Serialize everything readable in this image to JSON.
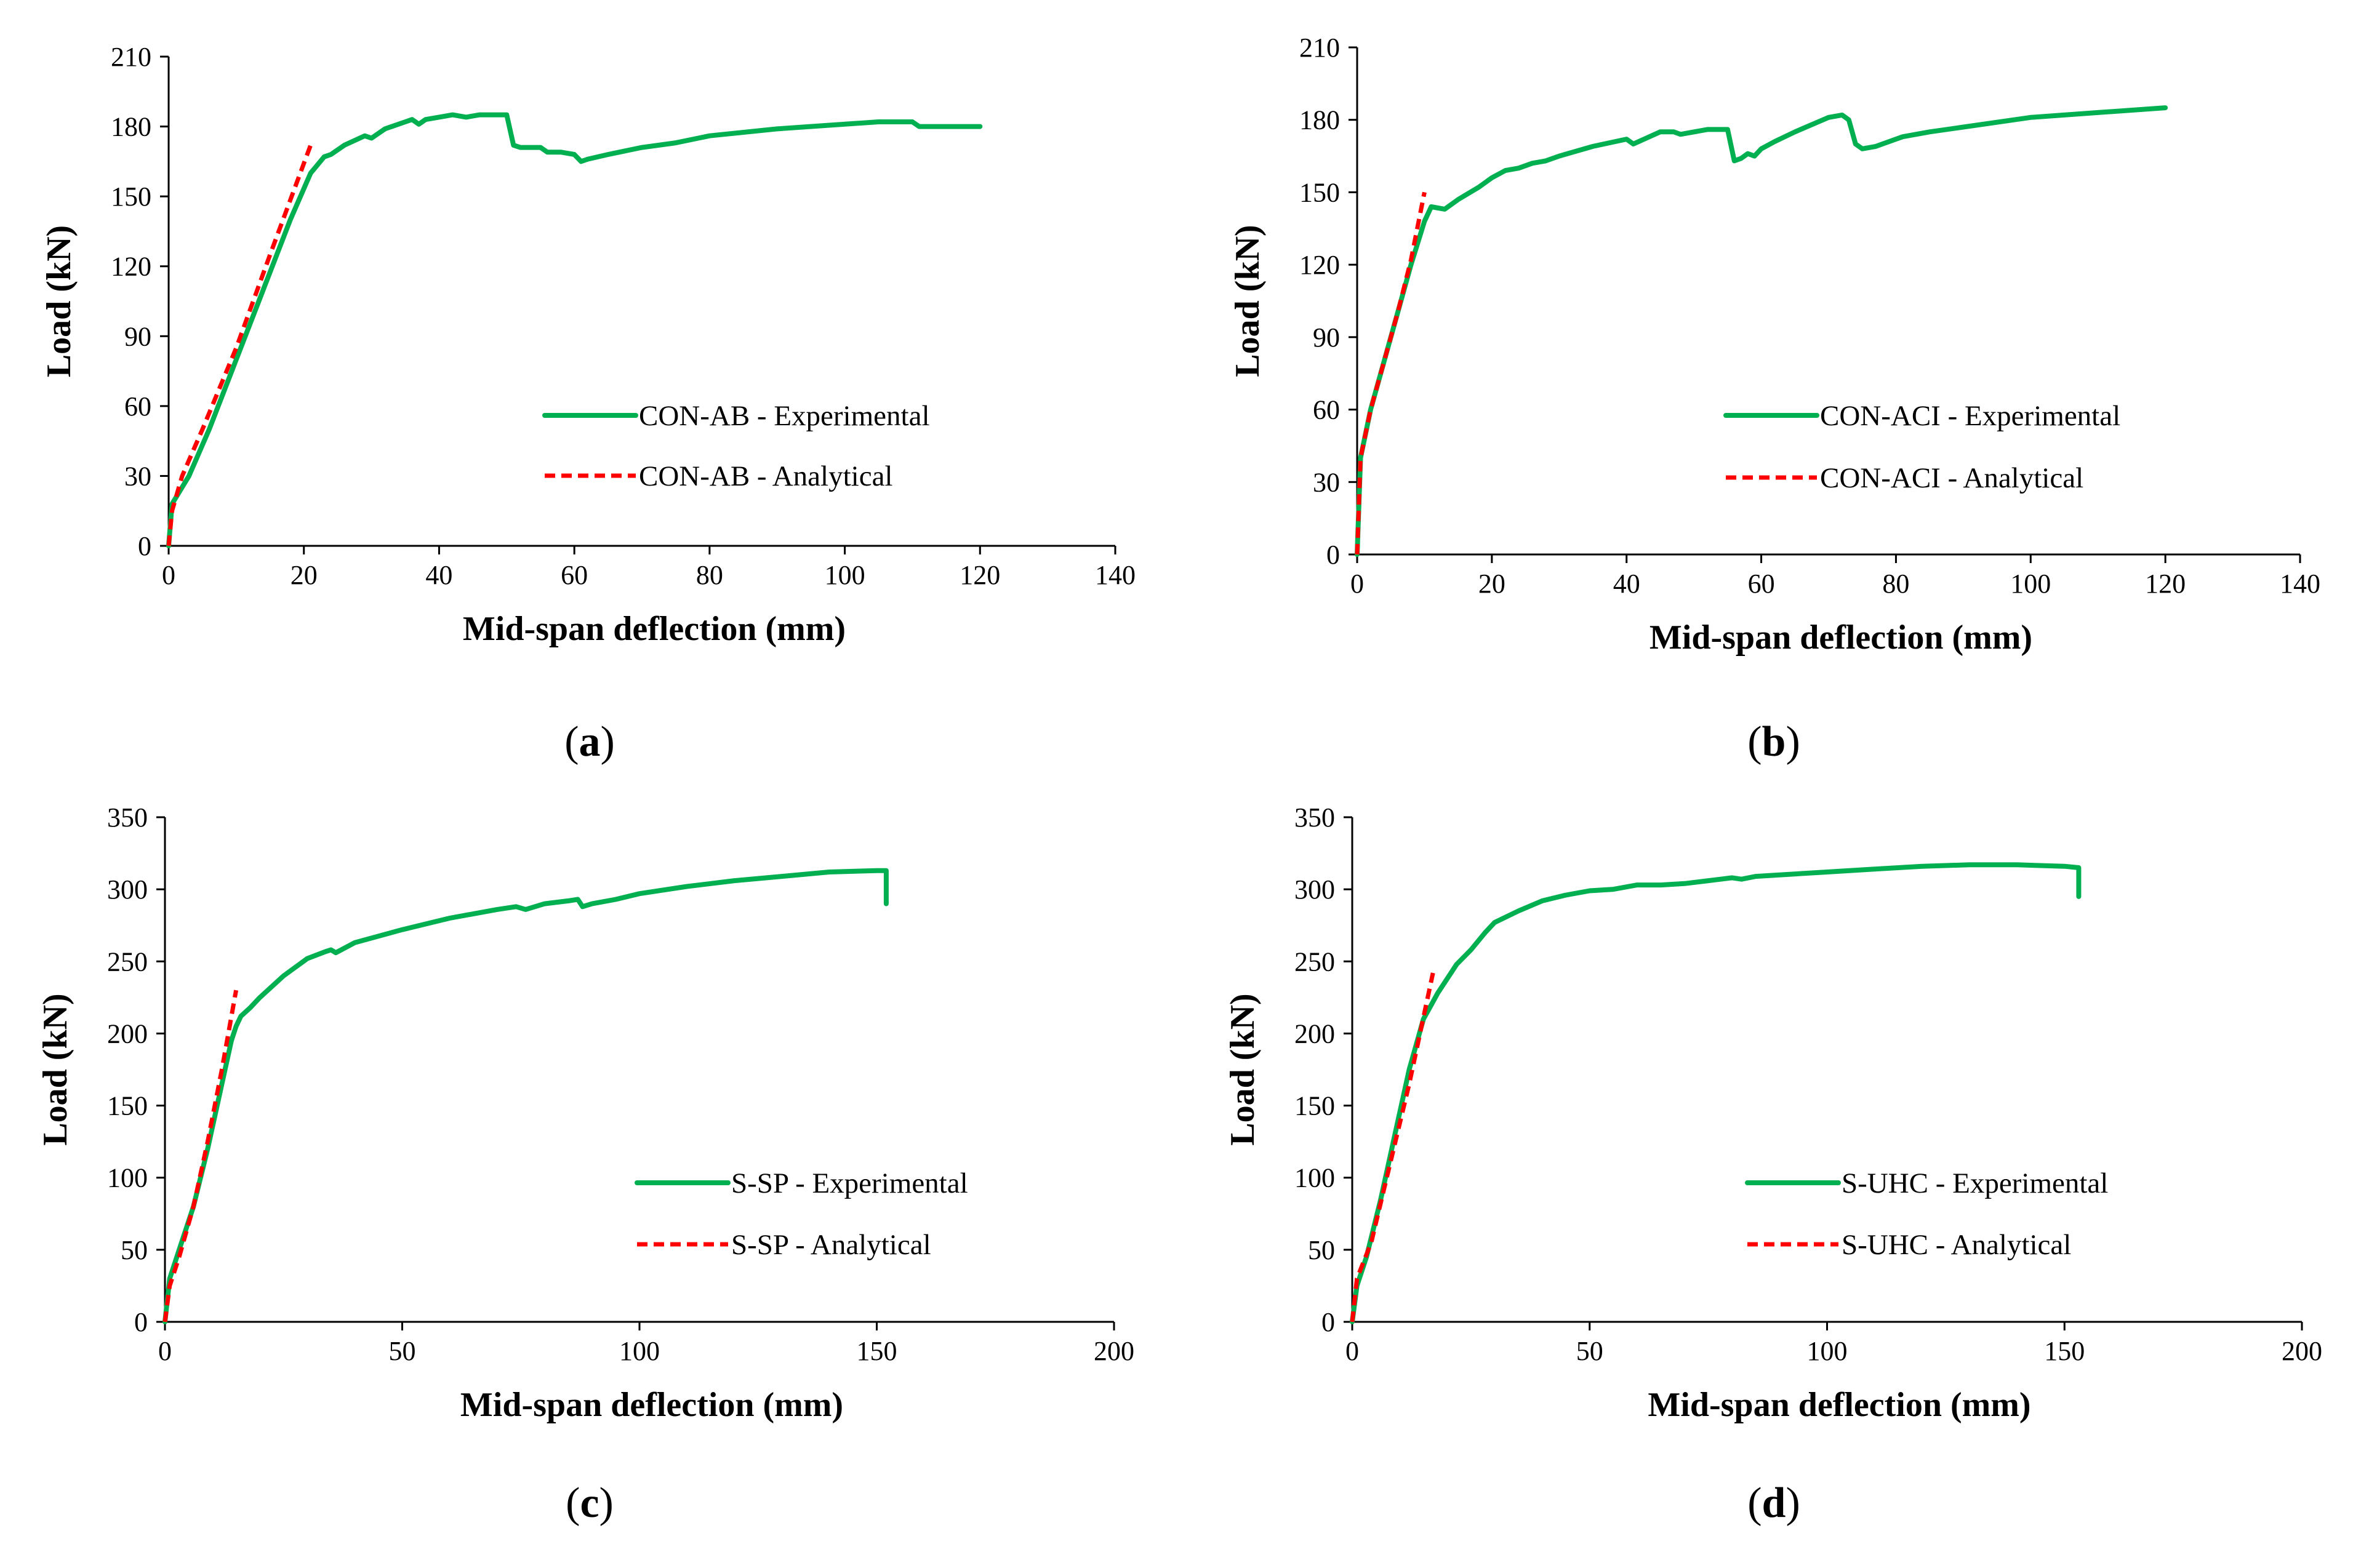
{
  "colors": {
    "experimental": "#00b050",
    "analytical": "#ff0000",
    "axis": "#000000"
  },
  "chart_data": [
    {
      "type": "line",
      "panel": "a",
      "caption_letter": "a",
      "xlabel": "Mid-span deflection (mm)",
      "ylabel": "Load (kN)",
      "xlim": [
        0,
        140
      ],
      "ylim": [
        0,
        210
      ],
      "xticks": [
        "0",
        "20",
        "40",
        "60",
        "80",
        "100",
        "120",
        "140"
      ],
      "yticks": [
        "0",
        "30",
        "60",
        "90",
        "120",
        "150",
        "180",
        "210"
      ],
      "legend_position": "center-right",
      "series": [
        {
          "name": "CON-AB - Experimental",
          "style": "solid",
          "x": [
            0,
            0.5,
            3,
            6,
            10,
            14,
            18,
            21,
            23,
            24,
            26,
            29,
            30,
            32,
            35,
            36,
            37,
            38,
            40,
            42,
            44,
            46,
            49,
            50,
            51,
            52,
            55,
            56,
            58,
            60,
            61,
            62,
            65,
            70,
            75,
            80,
            90,
            100,
            105,
            110,
            111,
            113,
            120
          ],
          "y": [
            0,
            18,
            30,
            50,
            80,
            110,
            140,
            160,
            167,
            168,
            172,
            176,
            175,
            179,
            182,
            183,
            181,
            183,
            184,
            185,
            184,
            185,
            185,
            185,
            172,
            171,
            171,
            169,
            169,
            168,
            165,
            166,
            168,
            171,
            173,
            176,
            179,
            181,
            182,
            182,
            180,
            180,
            180
          ]
        },
        {
          "name": "CON-AB - Analytical",
          "style": "dashed",
          "x": [
            0,
            0.5,
            2,
            5,
            10,
            15,
            21
          ],
          "y": [
            0,
            15,
            30,
            50,
            85,
            125,
            172
          ]
        }
      ]
    },
    {
      "type": "line",
      "panel": "b",
      "caption_letter": "b",
      "xlabel": "Mid-span deflection (mm)",
      "ylabel": "Load (kN)",
      "xlim": [
        0,
        140
      ],
      "ylim": [
        0,
        210
      ],
      "xticks": [
        "0",
        "20",
        "40",
        "60",
        "80",
        "100",
        "120",
        "140"
      ],
      "yticks": [
        "0",
        "30",
        "60",
        "90",
        "120",
        "150",
        "180",
        "210"
      ],
      "legend_position": "center-right",
      "series": [
        {
          "name": "CON-ACI - Experimental",
          "style": "solid",
          "x": [
            0,
            0.5,
            2,
            4,
            6,
            8,
            10,
            11,
            13,
            15,
            18,
            20,
            22,
            24,
            26,
            28,
            30,
            35,
            40,
            41,
            45,
            47,
            48,
            52,
            55,
            56,
            57,
            58,
            59,
            60,
            62,
            65,
            70,
            72,
            73,
            74,
            75,
            77,
            79,
            81,
            85,
            90,
            100,
            110,
            120
          ],
          "y": [
            0,
            40,
            60,
            80,
            100,
            120,
            138,
            144,
            143,
            147,
            152,
            156,
            159,
            160,
            162,
            163,
            165,
            169,
            172,
            170,
            175,
            175,
            174,
            176,
            176,
            163,
            164,
            166,
            165,
            168,
            171,
            175,
            181,
            182,
            180,
            170,
            168,
            169,
            171,
            173,
            175,
            177,
            181,
            183,
            185
          ]
        },
        {
          "name": "CON-ACI - Analytical",
          "style": "dashed",
          "x": [
            0,
            0.5,
            2,
            4,
            6,
            8,
            10
          ],
          "y": [
            0,
            40,
            60,
            80,
            100,
            122,
            150
          ]
        }
      ]
    },
    {
      "type": "line",
      "panel": "c",
      "caption_letter": "c",
      "xlabel": "Mid-span deflection (mm)",
      "ylabel": "Load (kN)",
      "xlim": [
        0,
        200
      ],
      "ylim": [
        0,
        350
      ],
      "xticks": [
        "0",
        "50",
        "100",
        "150",
        "200"
      ],
      "yticks": [
        "0",
        "50",
        "100",
        "150",
        "200",
        "250",
        "300",
        "350"
      ],
      "legend_position": "bottom-right",
      "series": [
        {
          "name": "S-SP - Experimental",
          "style": "solid",
          "x": [
            0,
            1,
            3,
            6,
            9,
            12,
            14,
            15,
            16,
            18,
            20,
            25,
            30,
            34,
            35,
            36,
            40,
            50,
            60,
            70,
            74,
            76,
            80,
            85,
            87,
            88,
            90,
            95,
            100,
            110,
            120,
            130,
            140,
            150,
            152,
            152
          ],
          "y": [
            0,
            30,
            50,
            80,
            120,
            165,
            195,
            205,
            212,
            218,
            225,
            240,
            252,
            257,
            258,
            256,
            263,
            272,
            280,
            286,
            288,
            286,
            290,
            292,
            293,
            288,
            290,
            293,
            297,
            302,
            306,
            309,
            312,
            313,
            313,
            290
          ]
        },
        {
          "name": "S-SP - Analytical",
          "style": "dashed",
          "x": [
            0,
            1,
            3,
            6,
            9,
            12,
            15
          ],
          "y": [
            0,
            25,
            45,
            80,
            125,
            175,
            230
          ]
        }
      ]
    },
    {
      "type": "line",
      "panel": "d",
      "caption_letter": "d",
      "xlabel": "Mid-span deflection (mm)",
      "ylabel": "Load (kN)",
      "xlim": [
        0,
        200
      ],
      "ylim": [
        0,
        350
      ],
      "xticks": [
        "0",
        "50",
        "100",
        "150",
        "200"
      ],
      "yticks": [
        "0",
        "50",
        "100",
        "150",
        "200",
        "250",
        "300",
        "350"
      ],
      "legend_position": "bottom-right",
      "series": [
        {
          "name": "S-UHC - Experimental",
          "style": "solid",
          "x": [
            0,
            1,
            3,
            6,
            9,
            12,
            15,
            17,
            18,
            20,
            22,
            25,
            28,
            30,
            35,
            40,
            45,
            50,
            55,
            60,
            65,
            70,
            75,
            80,
            82,
            85,
            90,
            100,
            110,
            120,
            130,
            140,
            150,
            153,
            153
          ],
          "y": [
            0,
            25,
            45,
            85,
            130,
            175,
            210,
            222,
            228,
            238,
            248,
            258,
            270,
            277,
            285,
            292,
            296,
            299,
            300,
            303,
            303,
            304,
            306,
            308,
            307,
            309,
            310,
            312,
            314,
            316,
            317,
            317,
            316,
            315,
            295
          ]
        },
        {
          "name": "S-UHC - Analytical",
          "style": "dashed",
          "x": [
            0,
            1,
            4,
            8,
            12,
            17
          ],
          "y": [
            0,
            30,
            55,
            110,
            165,
            242
          ]
        }
      ]
    }
  ]
}
